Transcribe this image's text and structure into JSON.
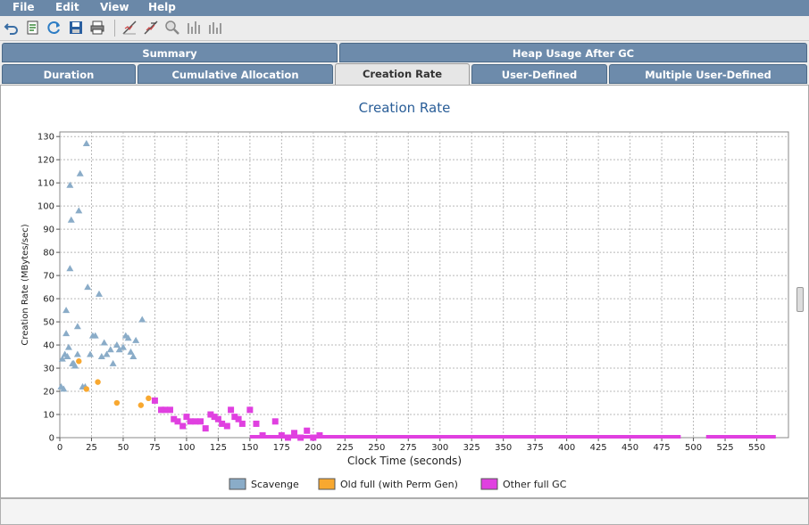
{
  "menu": {
    "items": [
      "File",
      "Edit",
      "View",
      "Help"
    ]
  },
  "toolbar": {
    "icons": [
      "undo-icon",
      "open-icon",
      "refresh-icon",
      "save-icon",
      "print-icon",
      "zoom-to-fit-icon",
      "zoom-out-icon",
      "zoom-icon",
      "bar-chart-icon",
      "bar-chart-alt-icon"
    ]
  },
  "tabs": {
    "row1": [
      "Summary",
      "Heap Usage After GC"
    ],
    "row2": [
      "Duration",
      "Cumulative Allocation",
      "Creation Rate",
      "User-Defined",
      "Multiple User-Defined"
    ],
    "active": "Creation Rate"
  },
  "chart_data": {
    "type": "scatter",
    "title": "Creation Rate",
    "xlabel": "Clock Time  (seconds)",
    "ylabel": "Creation Rate  (MBytes/sec)",
    "xlim": [
      0,
      575
    ],
    "ylim": [
      0,
      132
    ],
    "xticks": [
      0,
      25,
      50,
      75,
      100,
      125,
      150,
      175,
      200,
      225,
      250,
      275,
      300,
      325,
      350,
      375,
      400,
      425,
      450,
      475,
      500,
      525,
      550
    ],
    "yticks": [
      0,
      10,
      20,
      30,
      40,
      50,
      60,
      70,
      80,
      90,
      100,
      110,
      120,
      130
    ],
    "grid": true,
    "legend_position": "bottom",
    "series": [
      {
        "name": "Scavenge",
        "color": "#8aacc8",
        "marker": "triangle",
        "points": [
          [
            1,
            22
          ],
          [
            2,
            34
          ],
          [
            3,
            21
          ],
          [
            4,
            36
          ],
          [
            5,
            55
          ],
          [
            5,
            45
          ],
          [
            6,
            35
          ],
          [
            7,
            39
          ],
          [
            8,
            73
          ],
          [
            8,
            109
          ],
          [
            9,
            94
          ],
          [
            10,
            32
          ],
          [
            11,
            32
          ],
          [
            12,
            31
          ],
          [
            14,
            48
          ],
          [
            14,
            36
          ],
          [
            15,
            98
          ],
          [
            16,
            114
          ],
          [
            18,
            22
          ],
          [
            20,
            22
          ],
          [
            21,
            127
          ],
          [
            22,
            65
          ],
          [
            24,
            36
          ],
          [
            26,
            44
          ],
          [
            28,
            44
          ],
          [
            31,
            62
          ],
          [
            33,
            35
          ],
          [
            35,
            41
          ],
          [
            37,
            36
          ],
          [
            40,
            38
          ],
          [
            42,
            32
          ],
          [
            45,
            40
          ],
          [
            47,
            38
          ],
          [
            50,
            39
          ],
          [
            52,
            44
          ],
          [
            54,
            43
          ],
          [
            56,
            37
          ],
          [
            58,
            35
          ],
          [
            60,
            42
          ],
          [
            65,
            51
          ]
        ]
      },
      {
        "name": "Old full (with Perm Gen)",
        "color": "#f8a830",
        "marker": "circle",
        "points": [
          [
            15,
            33
          ],
          [
            21,
            21
          ],
          [
            30,
            24
          ],
          [
            45,
            15
          ],
          [
            64,
            14
          ],
          [
            70,
            17
          ]
        ]
      },
      {
        "name": "Other full GC",
        "color": "#e040e0",
        "marker": "square",
        "points": [
          [
            75,
            16
          ],
          [
            80,
            12
          ],
          [
            83,
            12
          ],
          [
            87,
            12
          ],
          [
            90,
            8
          ],
          [
            93,
            7
          ],
          [
            97,
            5
          ],
          [
            100,
            9
          ],
          [
            103,
            7
          ],
          [
            107,
            7
          ],
          [
            111,
            7
          ],
          [
            115,
            4
          ],
          [
            119,
            10
          ],
          [
            122,
            9
          ],
          [
            125,
            8
          ],
          [
            128,
            6
          ],
          [
            132,
            5
          ],
          [
            135,
            12
          ],
          [
            138,
            9
          ],
          [
            141,
            8
          ],
          [
            144,
            6
          ],
          [
            150,
            12
          ],
          [
            155,
            6
          ],
          [
            160,
            1
          ],
          [
            170,
            7
          ],
          [
            175,
            1
          ],
          [
            180,
            0
          ],
          [
            185,
            2
          ],
          [
            190,
            0
          ],
          [
            195,
            3
          ],
          [
            200,
            0
          ],
          [
            205,
            1
          ]
        ],
        "flat_segments": [
          [
            150,
            205,
            0
          ],
          [
            205,
            490,
            0
          ],
          [
            510,
            565,
            0
          ]
        ]
      }
    ]
  }
}
